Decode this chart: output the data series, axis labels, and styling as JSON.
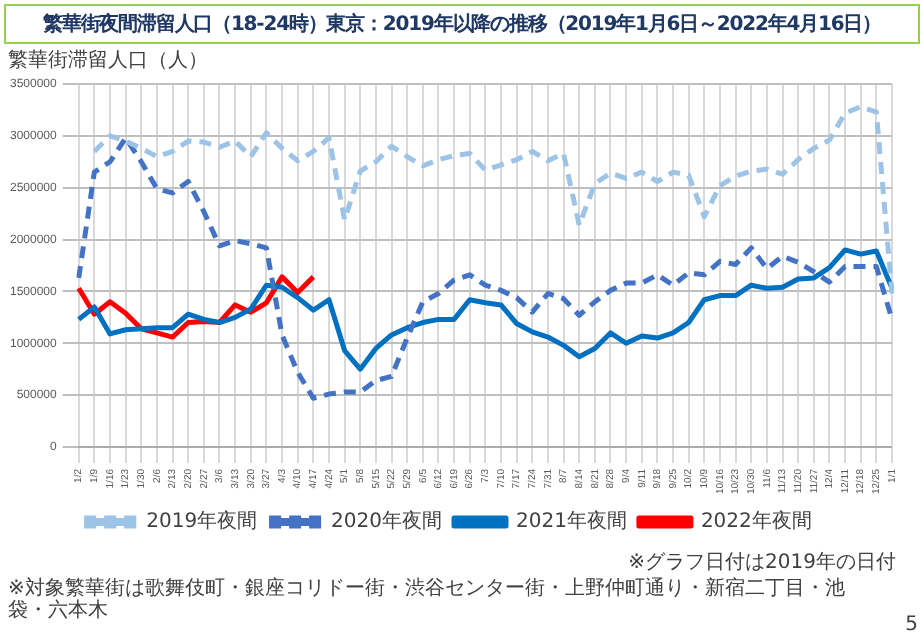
{
  "chart_data": {
    "type": "line",
    "title": "繁華街夜間滞留人口（18-24時）東京：2019年以降の推移（2019年1月6日～2022年4月16日）",
    "ylabel": "繁華街滞留人口（人）",
    "categories": [
      "1/2",
      "1/9",
      "1/16",
      "1/23",
      "1/30",
      "2/6",
      "2/13",
      "2/20",
      "2/27",
      "3/6",
      "3/13",
      "3/20",
      "3/27",
      "4/3",
      "4/10",
      "4/17",
      "4/24",
      "5/1",
      "5/8",
      "5/15",
      "5/22",
      "5/29",
      "6/5",
      "6/12",
      "6/19",
      "6/26",
      "7/3",
      "7/10",
      "7/17",
      "7/24",
      "7/31",
      "8/7",
      "8/14",
      "8/21",
      "8/28",
      "9/4",
      "9/11",
      "9/18",
      "9/25",
      "10/2",
      "10/9",
      "10/16",
      "10/23",
      "10/30",
      "11/6",
      "11/13",
      "11/20",
      "11/27",
      "12/4",
      "12/11",
      "12/18",
      "12/25",
      "1/1"
    ],
    "series": [
      {
        "name": "2019年夜間",
        "color": "#9dc3e6",
        "line_style": "dashed",
        "values": [
          null,
          2850000,
          3000000,
          2950000,
          2880000,
          2800000,
          2850000,
          2950000,
          2940000,
          2890000,
          2950000,
          2800000,
          3030000,
          2880000,
          2760000,
          2850000,
          2980000,
          2190000,
          2660000,
          2750000,
          2900000,
          2800000,
          2710000,
          2770000,
          2810000,
          2830000,
          2670000,
          2720000,
          2770000,
          2850000,
          2760000,
          2830000,
          2140000,
          2540000,
          2640000,
          2590000,
          2650000,
          2560000,
          2650000,
          2620000,
          2220000,
          2520000,
          2610000,
          2660000,
          2680000,
          2630000,
          2770000,
          2880000,
          2960000,
          3220000,
          3280000,
          3230000,
          1480000
        ]
      },
      {
        "name": "2020年夜間",
        "color": "#4472c4",
        "line_style": "dashed",
        "values": [
          1630000,
          2650000,
          2750000,
          2980000,
          2750000,
          2490000,
          2450000,
          2560000,
          2270000,
          1940000,
          1990000,
          1960000,
          1920000,
          1080000,
          720000,
          470000,
          510000,
          530000,
          530000,
          640000,
          680000,
          1050000,
          1400000,
          1480000,
          1610000,
          1660000,
          1560000,
          1510000,
          1440000,
          1300000,
          1480000,
          1430000,
          1270000,
          1400000,
          1510000,
          1580000,
          1580000,
          1660000,
          1560000,
          1680000,
          1660000,
          1790000,
          1760000,
          1920000,
          1720000,
          1840000,
          1780000,
          1690000,
          1590000,
          1740000,
          1740000,
          1740000,
          1230000
        ]
      },
      {
        "name": "2021年夜間",
        "color": "#0070c0",
        "line_style": "solid",
        "values": [
          1230000,
          1350000,
          1090000,
          1130000,
          1140000,
          1150000,
          1150000,
          1280000,
          1230000,
          1200000,
          1250000,
          1330000,
          1560000,
          1540000,
          1440000,
          1320000,
          1420000,
          930000,
          750000,
          950000,
          1080000,
          1150000,
          1200000,
          1230000,
          1230000,
          1420000,
          1390000,
          1370000,
          1190000,
          1110000,
          1060000,
          980000,
          870000,
          950000,
          1100000,
          1000000,
          1070000,
          1050000,
          1100000,
          1200000,
          1420000,
          1460000,
          1460000,
          1560000,
          1530000,
          1540000,
          1620000,
          1630000,
          1730000,
          1900000,
          1860000,
          1890000,
          1530000
        ]
      },
      {
        "name": "2022年夜間",
        "color": "#ff0000",
        "line_style": "solid",
        "values": [
          1530000,
          1280000,
          1400000,
          1290000,
          1140000,
          1100000,
          1060000,
          1200000,
          1210000,
          1200000,
          1370000,
          1300000,
          1390000,
          1640000,
          1490000,
          1640000,
          null,
          null,
          null,
          null,
          null,
          null,
          null,
          null,
          null,
          null,
          null,
          null,
          null,
          null,
          null,
          null,
          null,
          null,
          null,
          null,
          null,
          null,
          null,
          null,
          null,
          null,
          null,
          null,
          null,
          null,
          null,
          null,
          null,
          null,
          null,
          null,
          null
        ]
      }
    ],
    "ylim": [
      0,
      3500000
    ],
    "yticks": [
      0,
      500000,
      1000000,
      1500000,
      2000000,
      2500000,
      3000000,
      3500000
    ],
    "grid": true,
    "legend": "bottom",
    "marker": "none",
    "annotations": [
      "※対象繁華街は歌舞伎町・銀座コリドー街・渋谷センター街・上野仲町通り・新宿二丁目・池袋・六本木",
      "※グラフ日付は2019年の日付",
      "5"
    ]
  }
}
